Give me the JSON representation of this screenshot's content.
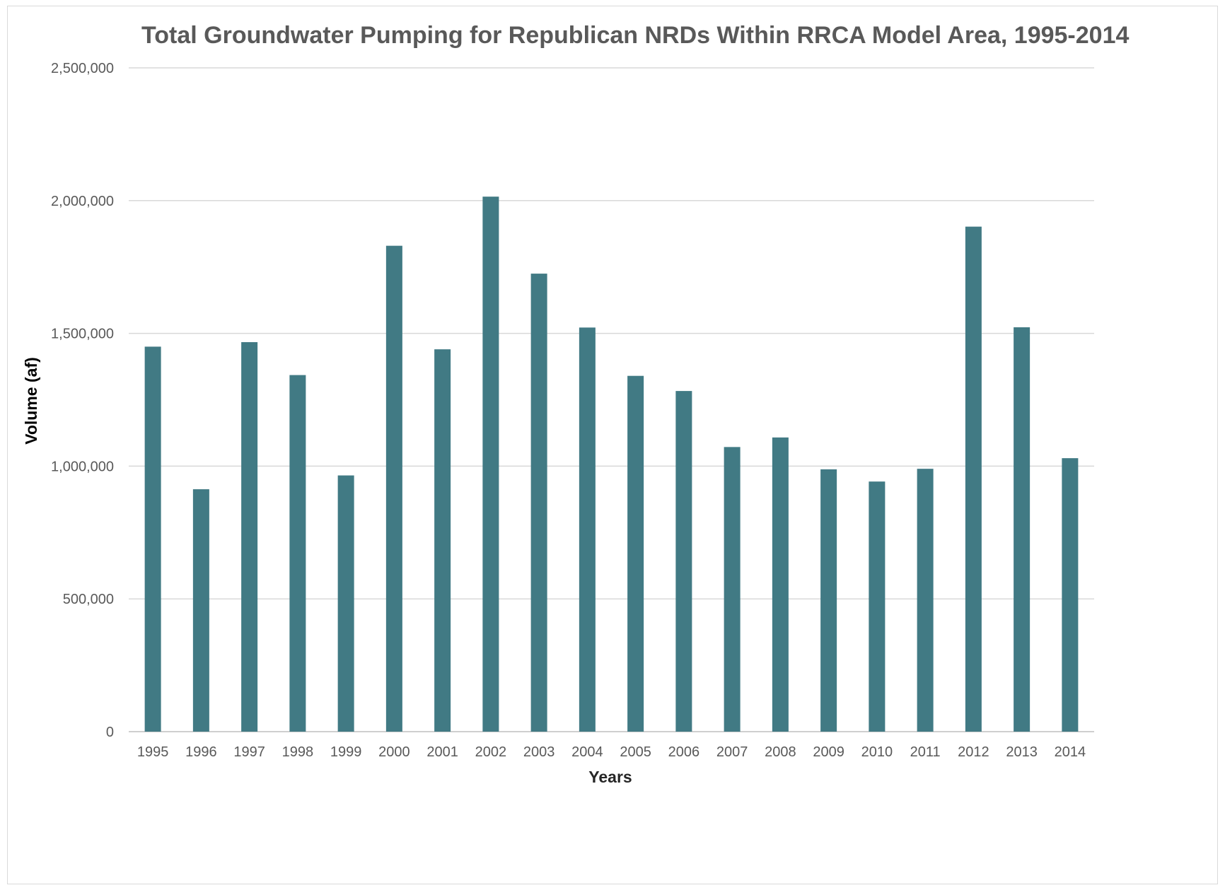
{
  "chart_data": {
    "type": "bar",
    "title": "Total Groundwater Pumping for Republican NRDs Within RRCA Model Area, 1995-2014",
    "xlabel": "Years",
    "ylabel": "Volume (af)",
    "ylim": [
      0,
      2500000
    ],
    "y_ticks": [
      0,
      500000,
      1000000,
      1500000,
      2000000,
      2500000
    ],
    "y_tick_labels": [
      "0",
      "500,000",
      "1,000,000",
      "1,500,000",
      "2,000,000",
      "2,500,000"
    ],
    "grid": true,
    "legend": "none",
    "bar_color": "#417a84",
    "categories": [
      "1995",
      "1996",
      "1997",
      "1998",
      "1999",
      "2000",
      "2001",
      "2002",
      "2003",
      "2004",
      "2005",
      "2006",
      "2007",
      "2008",
      "2009",
      "2010",
      "2011",
      "2012",
      "2013",
      "2014"
    ],
    "values": [
      1450000,
      913000,
      1467000,
      1343000,
      965000,
      1830000,
      1440000,
      2015000,
      1725000,
      1522000,
      1340000,
      1283000,
      1072000,
      1108000,
      988000,
      942000,
      990000,
      1902000,
      1523000,
      1030000
    ]
  }
}
